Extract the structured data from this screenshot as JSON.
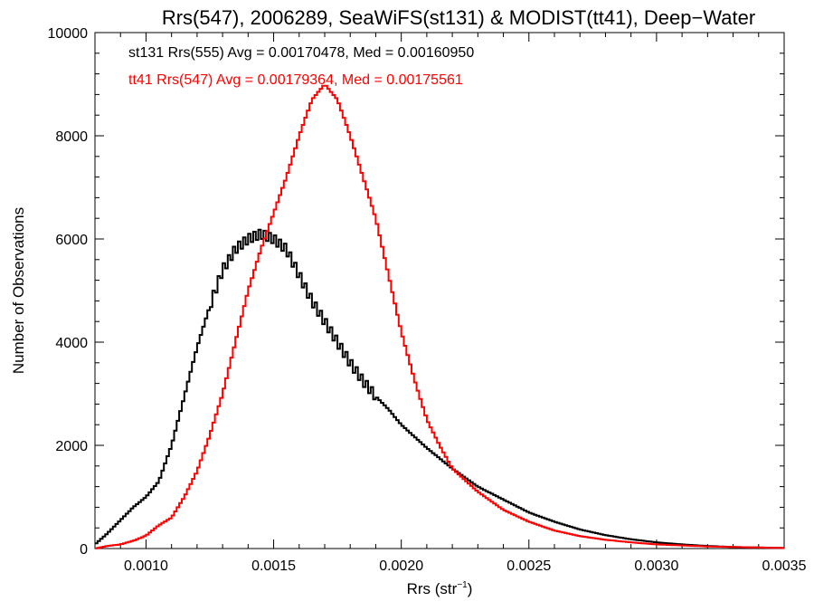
{
  "chart_data": {
    "type": "histogram",
    "title": "Rrs(547), 2006289, SeaWiFS(st131) & MODIST(tt41), Deep−Water",
    "xlabel_base": "Rrs (str",
    "xlabel_sup": "−1",
    "xlabel_end": ")",
    "ylabel": "Number of Observations",
    "xlim": [
      0.0008,
      0.0035
    ],
    "ylim": [
      0,
      10000
    ],
    "xticks": [
      0.001,
      0.0015,
      0.002,
      0.0025,
      0.003,
      0.0035
    ],
    "xtick_labels": [
      "0.0010",
      "0.0015",
      "0.0020",
      "0.0025",
      "0.0030",
      "0.0035"
    ],
    "yticks": [
      0,
      2000,
      4000,
      6000,
      8000,
      10000
    ],
    "ytick_labels": [
      "0",
      "2000",
      "4000",
      "6000",
      "8000",
      "10000"
    ],
    "grid": false,
    "series": [
      {
        "name": "st131",
        "color": "#000000",
        "annotation": "st131 Rrs(555) Avg = 0.00170478, Med = 0.00160950",
        "points": [
          [
            0.0008,
            80
          ],
          [
            0.00085,
            300
          ],
          [
            0.0009,
            550
          ],
          [
            0.00095,
            800
          ],
          [
            0.001,
            1000
          ],
          [
            0.00105,
            1300
          ],
          [
            0.0011,
            2000
          ],
          [
            0.00115,
            2950
          ],
          [
            0.0012,
            3900
          ],
          [
            0.00125,
            4700
          ],
          [
            0.0013,
            5400
          ],
          [
            0.00135,
            5800
          ],
          [
            0.0014,
            6000
          ],
          [
            0.00145,
            6100
          ],
          [
            0.0015,
            6000
          ],
          [
            0.00155,
            5800
          ],
          [
            0.0016,
            5300
          ],
          [
            0.00165,
            4800
          ],
          [
            0.0017,
            4400
          ],
          [
            0.00175,
            4000
          ],
          [
            0.0018,
            3600
          ],
          [
            0.00185,
            3250
          ],
          [
            0.0019,
            2950
          ],
          [
            0.00195,
            2700
          ],
          [
            0.002,
            2400
          ],
          [
            0.0021,
            1950
          ],
          [
            0.0022,
            1550
          ],
          [
            0.0023,
            1200
          ],
          [
            0.0024,
            950
          ],
          [
            0.0025,
            700
          ],
          [
            0.0026,
            520
          ],
          [
            0.0027,
            370
          ],
          [
            0.0028,
            260
          ],
          [
            0.0029,
            180
          ],
          [
            0.003,
            120
          ],
          [
            0.0031,
            80
          ],
          [
            0.0032,
            50
          ],
          [
            0.0033,
            30
          ],
          [
            0.0034,
            20
          ],
          [
            0.0035,
            10
          ]
        ]
      },
      {
        "name": "tt41",
        "color": "#ff0000",
        "annotation": "tt41 Rrs(547) Avg = 0.00179364, Med = 0.00175561",
        "points": [
          [
            0.0008,
            0
          ],
          [
            0.00085,
            50
          ],
          [
            0.0009,
            80
          ],
          [
            0.00095,
            150
          ],
          [
            0.001,
            250
          ],
          [
            0.00105,
            450
          ],
          [
            0.0011,
            600
          ],
          [
            0.00115,
            1000
          ],
          [
            0.0012,
            1500
          ],
          [
            0.00125,
            2200
          ],
          [
            0.0013,
            3000
          ],
          [
            0.00135,
            4000
          ],
          [
            0.0014,
            5000
          ],
          [
            0.00145,
            5800
          ],
          [
            0.0015,
            6500
          ],
          [
            0.00155,
            7200
          ],
          [
            0.0016,
            8000
          ],
          [
            0.00165,
            8700
          ],
          [
            0.0017,
            9000
          ],
          [
            0.00175,
            8700
          ],
          [
            0.0018,
            8000
          ],
          [
            0.00185,
            7200
          ],
          [
            0.0019,
            6400
          ],
          [
            0.00195,
            5300
          ],
          [
            0.002,
            4200
          ],
          [
            0.00205,
            3300
          ],
          [
            0.0021,
            2500
          ],
          [
            0.00215,
            2000
          ],
          [
            0.0022,
            1550
          ],
          [
            0.0023,
            1100
          ],
          [
            0.0024,
            750
          ],
          [
            0.0025,
            520
          ],
          [
            0.0026,
            350
          ],
          [
            0.0027,
            240
          ],
          [
            0.0028,
            170
          ],
          [
            0.0029,
            120
          ],
          [
            0.003,
            80
          ],
          [
            0.0031,
            60
          ],
          [
            0.0032,
            40
          ],
          [
            0.0033,
            30
          ],
          [
            0.0034,
            20
          ],
          [
            0.0035,
            10
          ]
        ]
      }
    ]
  }
}
